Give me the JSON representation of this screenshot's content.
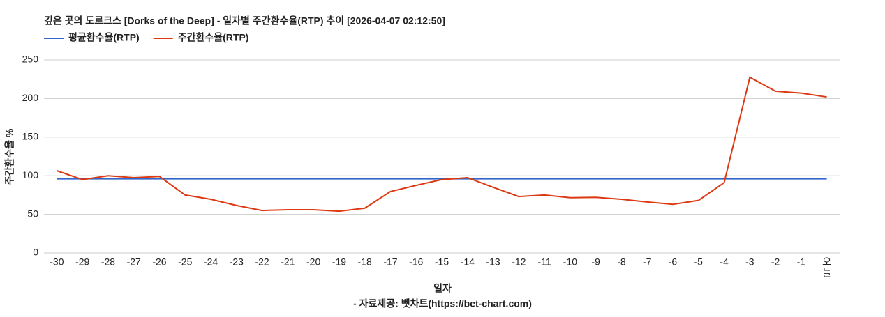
{
  "chart_data": {
    "type": "line",
    "title": "깊은 곳의 도르크스 [Dorks of the Deep] - 일자별 주간환수율(RTP) 추이 [2026-04-07 02:12:50]",
    "x_label": "일자",
    "y_label": "주간환수율 %",
    "source": "- 자료제공: 벳차트(https://bet-chart.com)",
    "categories": [
      "-30",
      "-29",
      "-28",
      "-27",
      "-26",
      "-25",
      "-24",
      "-23",
      "-22",
      "-21",
      "-20",
      "-19",
      "-18",
      "-17",
      "-16",
      "-15",
      "-14",
      "-13",
      "-12",
      "-11",
      "-10",
      "-9",
      "-8",
      "-7",
      "-6",
      "-5",
      "-4",
      "-3",
      "-2",
      "-1",
      "오늘"
    ],
    "series": [
      {
        "name": "평균환수율(RTP)",
        "color": "#3366cc",
        "values": [
          96,
          96,
          96,
          96,
          96,
          96,
          96,
          96,
          96,
          96,
          96,
          96,
          96,
          96,
          96,
          96,
          96,
          96,
          96,
          96,
          96,
          96,
          96,
          96,
          96,
          96,
          96,
          96,
          96,
          96,
          96
        ]
      },
      {
        "name": "주간환수율(RTP)",
        "color": "#dc3912",
        "values": [
          106.5,
          95,
          100,
          97.5,
          99,
          75,
          69.5,
          61.5,
          55,
          56,
          56,
          54,
          58,
          79.5,
          87.5,
          95,
          97.5,
          85,
          73,
          75,
          71.5,
          72,
          69.5,
          66,
          63,
          68,
          91,
          227.5,
          209.5,
          207,
          202
        ]
      }
    ],
    "ylim": [
      0,
      250
    ],
    "yticks": [
      0,
      50,
      100,
      150,
      200,
      250
    ],
    "grid": true
  }
}
